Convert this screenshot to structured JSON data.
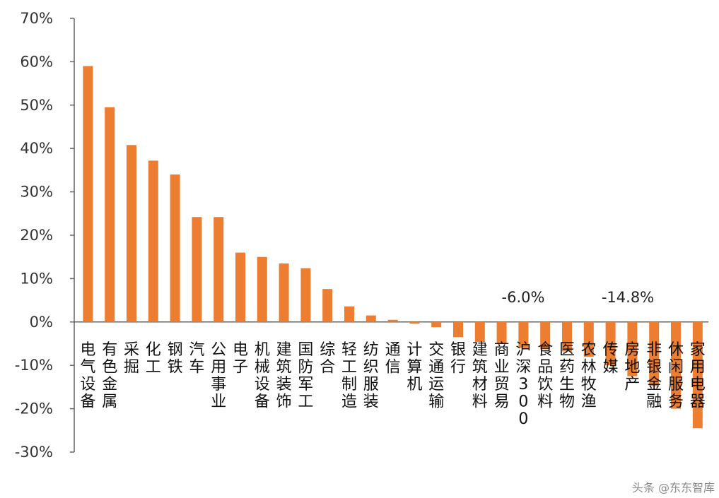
{
  "chart_data": {
    "type": "bar",
    "categories": [
      "电气设备",
      "有色金属",
      "采掘",
      "化工",
      "钢铁",
      "汽车",
      "公用事业",
      "电子",
      "机械设备",
      "建筑装饰",
      "国防军工",
      "综合",
      "轻工制造",
      "纺织服装",
      "通信",
      "计算机",
      "交通运输",
      "银行",
      "建筑材料",
      "商业贸易",
      "沪深300",
      "食品饮料",
      "医药生物",
      "农林牧渔",
      "传媒",
      "房地产",
      "非银金融",
      "休闲服务",
      "家用电器"
    ],
    "values": [
      59.0,
      49.5,
      40.8,
      37.2,
      34.0,
      24.2,
      24.2,
      16.0,
      15.0,
      13.5,
      12.4,
      7.6,
      3.6,
      1.5,
      0.5,
      -0.4,
      -1.2,
      -3.5,
      -4.6,
      -5.0,
      -6.0,
      -6.3,
      -6.8,
      -8.0,
      -10.0,
      -12.5,
      -14.8,
      -20.0,
      -24.5
    ],
    "ylim": [
      -30,
      70
    ],
    "yticks": [
      "70%",
      "60%",
      "50%",
      "40%",
      "30%",
      "20%",
      "10%",
      "0%",
      "-10%",
      "-20%",
      "-30%"
    ],
    "annotations": [
      "-6.0%",
      "-14.8%"
    ],
    "bar_color": "#ED7D31",
    "grid": false,
    "title": "",
    "xlabel": "",
    "ylabel": ""
  },
  "watermark": "头条 @东东智库"
}
